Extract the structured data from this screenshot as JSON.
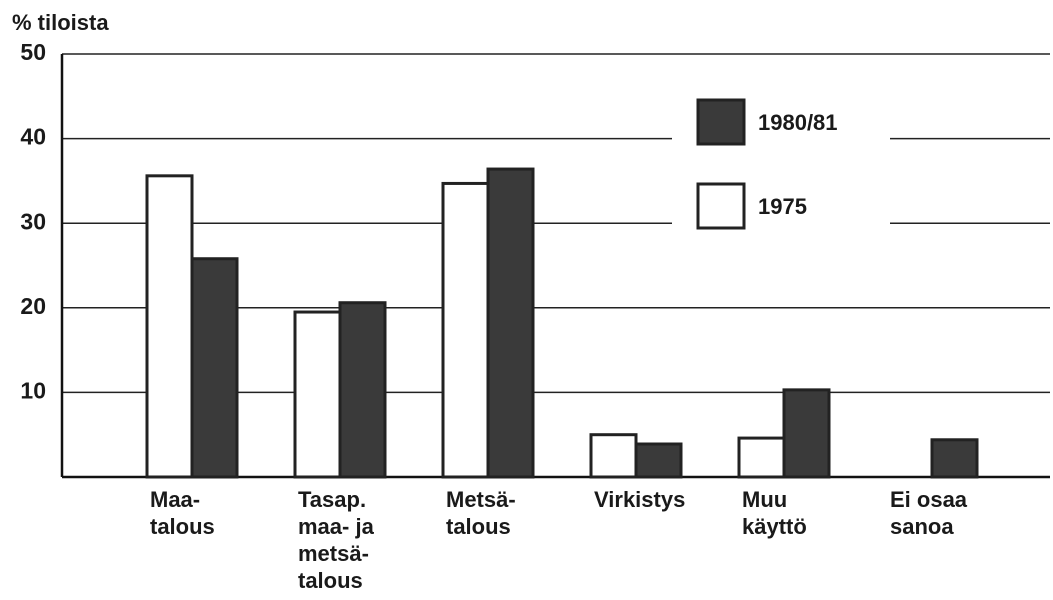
{
  "chart_data": {
    "type": "bar",
    "ylabel": "% tiloista",
    "categories": [
      "Maa-\ntalous",
      "Tasap.\nmaa- ja\nmetsä-\ntalous",
      "Metsä-\ntalous",
      "Virkistys",
      "Muu\nkäyttö",
      "Ei osaa\nsanoa"
    ],
    "series": [
      {
        "name": "1975",
        "color": "#ffffff",
        "values": [
          35.6,
          19.5,
          34.7,
          5.0,
          4.6,
          null
        ]
      },
      {
        "name": "1980/81",
        "color": "#3a3a3a",
        "values": [
          25.8,
          20.6,
          36.4,
          3.9,
          10.3,
          4.4
        ]
      }
    ],
    "ylim": [
      0,
      50
    ],
    "yticks": [
      10,
      20,
      30,
      40,
      50
    ],
    "grid": true,
    "legend": "upper right"
  }
}
